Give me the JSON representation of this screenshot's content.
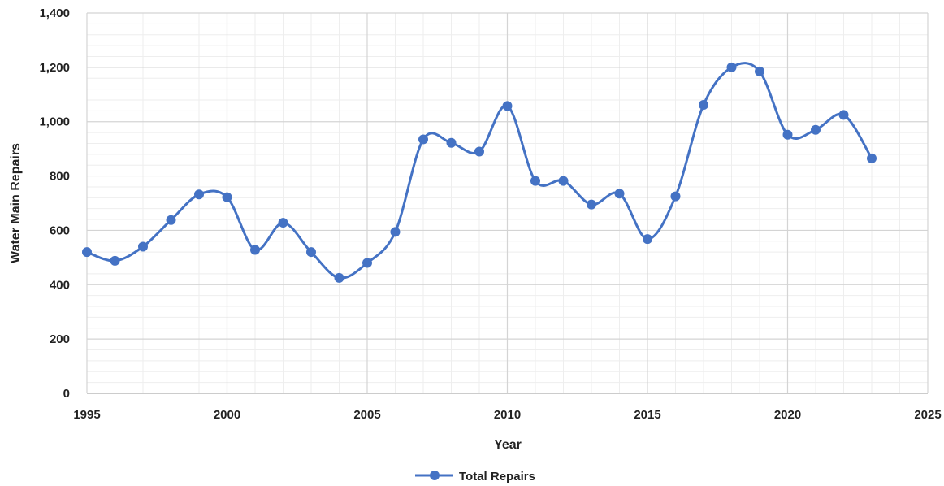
{
  "chart_data": {
    "type": "line",
    "xlabel": "Year",
    "ylabel": "Water Main Repairs",
    "xlim": [
      1995,
      2025
    ],
    "ylim": [
      0,
      1400
    ],
    "x_ticks": [
      1995,
      2000,
      2005,
      2010,
      2015,
      2020,
      2025
    ],
    "y_ticks": [
      0,
      200,
      400,
      600,
      800,
      1000,
      1200,
      1400
    ],
    "x_tick_labels": [
      "1995",
      "2000",
      "2005",
      "2010",
      "2015",
      "2020",
      "2025"
    ],
    "y_tick_labels": [
      "0",
      "200",
      "400",
      "600",
      "800",
      "1,000",
      "1,200",
      "1,400"
    ],
    "grid": true,
    "smooth": true,
    "legend_position": "bottom-center",
    "series": [
      {
        "name": "Total Repairs",
        "color": "#4472C4",
        "x": [
          1995,
          1996,
          1997,
          1998,
          1999,
          2000,
          2001,
          2002,
          2003,
          2004,
          2005,
          2006,
          2007,
          2008,
          2009,
          2010,
          2011,
          2012,
          2013,
          2014,
          2015,
          2016,
          2017,
          2018,
          2019,
          2020,
          2021,
          2022,
          2023
        ],
        "y": [
          520,
          488,
          540,
          638,
          732,
          722,
          528,
          628,
          520,
          425,
          480,
          594,
          935,
          922,
          890,
          1058,
          782,
          782,
          695,
          735,
          568,
          725,
          1062,
          1200,
          1185,
          952,
          970,
          1025,
          865
        ]
      }
    ]
  }
}
